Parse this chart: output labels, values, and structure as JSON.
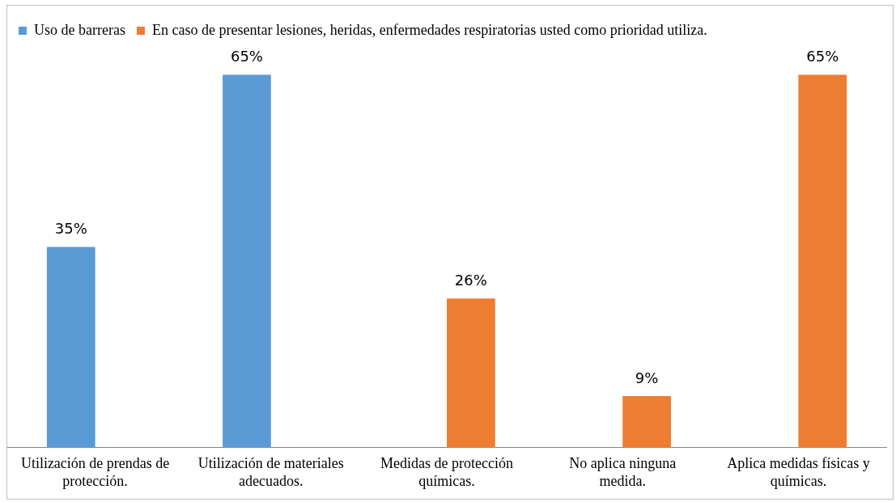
{
  "chart_data": {
    "type": "bar",
    "categories": [
      "Utilización de prendas de protección.",
      "Utilización de materiales adecuados.",
      "Medidas de protección químicas.",
      "No aplica ninguna medida.",
      "Aplica medidas físicas y químicas."
    ],
    "series": [
      {
        "name": "Uso de barreras",
        "color": "#5b9bd5",
        "values": [
          35,
          65,
          null,
          null,
          null
        ],
        "value_labels": [
          "35%",
          "65%",
          null,
          null,
          null
        ]
      },
      {
        "name": "En caso de presentar lesiones, heridas, enfermedades respiratorias usted como prioridad utiliza.",
        "color": "#ed7d31",
        "values": [
          null,
          null,
          26,
          9,
          65
        ],
        "value_labels": [
          null,
          null,
          "26%",
          "9%",
          "65%"
        ]
      }
    ],
    "legend": "top left",
    "grid": false,
    "tick_labels": "x"
  }
}
